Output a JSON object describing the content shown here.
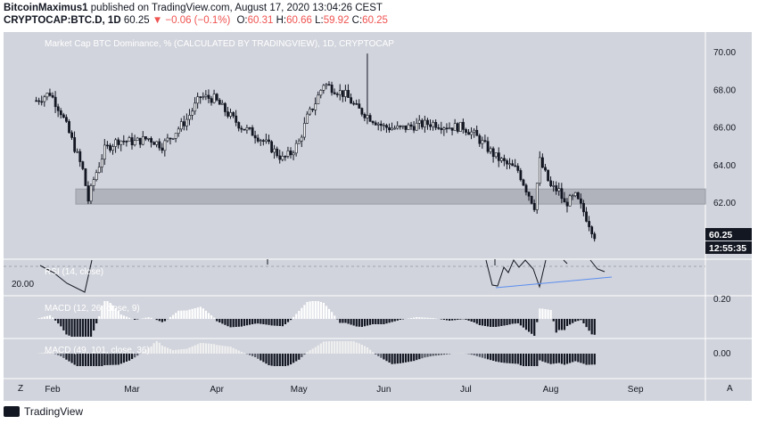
{
  "header": {
    "author": "BitcoinMaximus1",
    "published_text": "published on TradingView.com, August 17, 2020 13:04:26 CEST",
    "symbol": "CRYPTOCAP:BTC.D, 1D",
    "last": "60.25",
    "change": "▼ −0.06 (−0.1%)",
    "o_label": "O:",
    "o": "60.31",
    "h_label": "H:",
    "h": "60.66",
    "l_label": "L:",
    "l": "59.92",
    "c_label": "C:",
    "c": "60.25"
  },
  "footer": {
    "brand": "TradingView"
  },
  "colors": {
    "pane_bg": "#d1d4dc",
    "band": "#b0b3bb",
    "candle": "#131722",
    "trendline": "#5b8def",
    "price_tag": "#131722"
  },
  "chart_data": [
    {
      "type": "candlestick",
      "title": "Market Cap BTC Dominance, % (CALCULATED BY TRADINGVIEW), 1D, CRYPTOCAP",
      "x_ticks": [
        "Feb",
        "Mar",
        "Apr",
        "May",
        "Jun",
        "Jul",
        "Aug",
        "Sep"
      ],
      "y_ticks": [
        "62.00",
        "64.00",
        "66.00",
        "68.00",
        "70.00"
      ],
      "ylim": [
        59.3,
        71.0
      ],
      "last_price": "60.25",
      "countdown": "12:55:35",
      "support_zone": [
        61.9,
        62.7
      ],
      "series": [
        {
          "date": "Jan 26",
          "close": 67.4
        },
        {
          "date": "Jan 31",
          "close": 67.8
        },
        {
          "date": "Feb 4",
          "close": 66.8
        },
        {
          "date": "Feb 8",
          "close": 65.3
        },
        {
          "date": "Feb 12",
          "close": 63.7
        },
        {
          "date": "Feb 14",
          "close": 62.1
        },
        {
          "date": "Feb 16",
          "close": 63.2
        },
        {
          "date": "Feb 20",
          "close": 64.8
        },
        {
          "date": "Feb 25",
          "close": 65.3
        },
        {
          "date": "Mar 2",
          "close": 65.2
        },
        {
          "date": "Mar 7",
          "close": 65.4
        },
        {
          "date": "Mar 12",
          "close": 65.0
        },
        {
          "date": "Mar 16",
          "close": 65.6
        },
        {
          "date": "Mar 21",
          "close": 66.4
        },
        {
          "date": "Mar 26",
          "close": 67.6
        },
        {
          "date": "Mar 31",
          "close": 67.5
        },
        {
          "date": "Apr 5",
          "close": 66.7
        },
        {
          "date": "Apr 10",
          "close": 66.0
        },
        {
          "date": "Apr 15",
          "close": 65.6
        },
        {
          "date": "Apr 20",
          "close": 65.0
        },
        {
          "date": "Apr 25",
          "close": 64.3
        },
        {
          "date": "Apr 28",
          "close": 64.6
        },
        {
          "date": "May 1",
          "close": 65.2
        },
        {
          "date": "May 4",
          "close": 66.5
        },
        {
          "date": "May 7",
          "close": 67.3
        },
        {
          "date": "May 10",
          "close": 68.3
        },
        {
          "date": "May 14",
          "close": 68.0
        },
        {
          "date": "May 18",
          "close": 67.7
        },
        {
          "date": "May 22",
          "close": 67.0
        },
        {
          "date": "May 27",
          "close": 66.5
        },
        {
          "date": "Jun 1",
          "close": 66.0
        },
        {
          "date": "Jun 7",
          "close": 65.9
        },
        {
          "date": "Jun 13",
          "close": 66.1
        },
        {
          "date": "Jun 19",
          "close": 66.2
        },
        {
          "date": "Jun 25",
          "close": 66.0
        },
        {
          "date": "Jun 30",
          "close": 66.0
        },
        {
          "date": "Jul 4",
          "close": 65.6
        },
        {
          "date": "Jul 8",
          "close": 65.0
        },
        {
          "date": "Jul 12",
          "close": 64.4
        },
        {
          "date": "Jul 16",
          "close": 64.0
        },
        {
          "date": "Jul 20",
          "close": 63.7
        },
        {
          "date": "Jul 23",
          "close": 62.7
        },
        {
          "date": "Jul 26",
          "close": 61.8
        },
        {
          "date": "Jul 28",
          "close": 64.2
        },
        {
          "date": "Aug 1",
          "close": 62.8
        },
        {
          "date": "Aug 4",
          "close": 62.6
        },
        {
          "date": "Aug 6",
          "close": 61.9
        },
        {
          "date": "Aug 10",
          "close": 62.3
        },
        {
          "date": "Aug 13",
          "close": 61.5
        },
        {
          "date": "Aug 17",
          "close": 60.25
        }
      ]
    },
    {
      "type": "line",
      "title": "RSI (14, close)",
      "y_ticks": [
        "20.00"
      ],
      "note": "RSI pane with rising blue trendline (bullish divergence)"
    },
    {
      "type": "bar",
      "title": "MACD (12, 26, close, 9)",
      "y_ticks": [
        "0.20"
      ]
    },
    {
      "type": "bar",
      "title": "MACD (49, 101, close, 36)",
      "y_ticks": [
        "0.00"
      ]
    }
  ]
}
